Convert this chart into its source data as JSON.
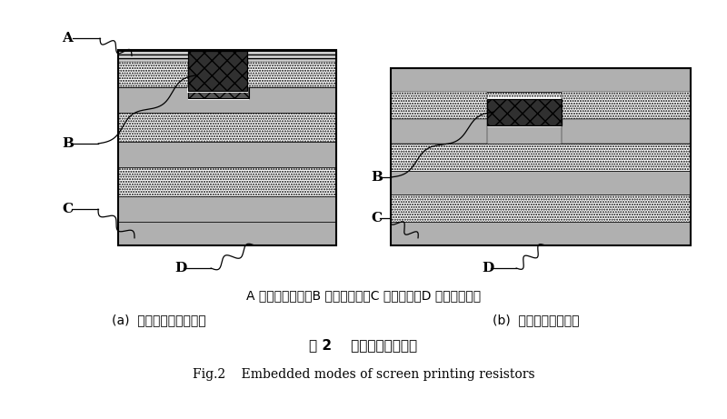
{
  "fig_width": 8.0,
  "fig_height": 4.61,
  "dpi": 100,
  "bg_color": "#ffffff",
  "caption_line1": "A 为阻焊油墨层；B 为网印电阔；C 为介质层；D 为铜面图形层",
  "caption_line2a": "(a)  外层电路板内埋电阔",
  "caption_line2b": "(b)  内层板芯内埋电阔",
  "caption_line3": "图 2    网印电阔内埋方式",
  "caption_line4": "Fig.2    Embedded modes of screen printing resistors"
}
